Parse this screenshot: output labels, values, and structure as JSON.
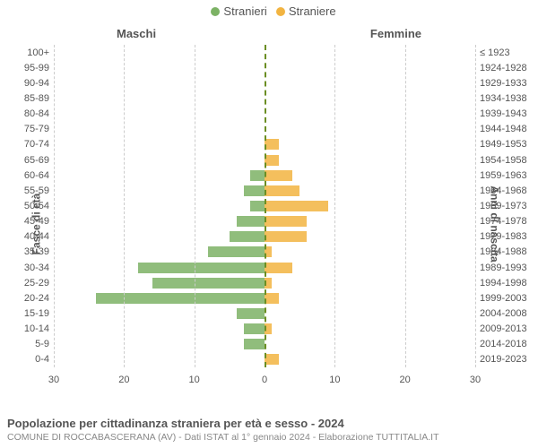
{
  "legend": {
    "items": [
      {
        "label": "Stranieri",
        "color": "#7cb265"
      },
      {
        "label": "Straniere",
        "color": "#f2b441"
      }
    ]
  },
  "column_titles": {
    "left": "Maschi",
    "right": "Femmine"
  },
  "y_axis": {
    "left_label": "Fasce di età",
    "right_label": "Anni di nascita"
  },
  "footer": {
    "title": "Popolazione per cittadinanza straniera per età e sesso - 2024",
    "subtitle": "COMUNE DI ROCCABASCERANA (AV) - Dati ISTAT al 1° gennaio 2024 - Elaborazione TUTTITALIA.IT"
  },
  "chart": {
    "type": "population-pyramid",
    "xmax": 30,
    "xtick_step": 10,
    "background_color": "#ffffff",
    "grid_color": "#cccccc",
    "center_line_color": "#6b8e23",
    "male_color": "#7cb265",
    "female_color": "#f2b441",
    "tick_fontsize": 11,
    "rows": [
      {
        "age": "100+",
        "years": "≤ 1923",
        "m": 0,
        "f": 0
      },
      {
        "age": "95-99",
        "years": "1924-1928",
        "m": 0,
        "f": 0
      },
      {
        "age": "90-94",
        "years": "1929-1933",
        "m": 0,
        "f": 0
      },
      {
        "age": "85-89",
        "years": "1934-1938",
        "m": 0,
        "f": 0
      },
      {
        "age": "80-84",
        "years": "1939-1943",
        "m": 0,
        "f": 0
      },
      {
        "age": "75-79",
        "years": "1944-1948",
        "m": 0,
        "f": 0
      },
      {
        "age": "70-74",
        "years": "1949-1953",
        "m": 0,
        "f": 2
      },
      {
        "age": "65-69",
        "years": "1954-1958",
        "m": 0,
        "f": 2
      },
      {
        "age": "60-64",
        "years": "1959-1963",
        "m": 2,
        "f": 4
      },
      {
        "age": "55-59",
        "years": "1964-1968",
        "m": 3,
        "f": 5
      },
      {
        "age": "50-54",
        "years": "1969-1973",
        "m": 2,
        "f": 9
      },
      {
        "age": "45-49",
        "years": "1974-1978",
        "m": 4,
        "f": 6
      },
      {
        "age": "40-44",
        "years": "1979-1983",
        "m": 5,
        "f": 6
      },
      {
        "age": "35-39",
        "years": "1984-1988",
        "m": 8,
        "f": 1
      },
      {
        "age": "30-34",
        "years": "1989-1993",
        "m": 18,
        "f": 4
      },
      {
        "age": "25-29",
        "years": "1994-1998",
        "m": 16,
        "f": 1
      },
      {
        "age": "20-24",
        "years": "1999-2003",
        "m": 24,
        "f": 2
      },
      {
        "age": "15-19",
        "years": "2004-2008",
        "m": 4,
        "f": 0
      },
      {
        "age": "10-14",
        "years": "2009-2013",
        "m": 3,
        "f": 1
      },
      {
        "age": "5-9",
        "years": "2014-2018",
        "m": 3,
        "f": 0
      },
      {
        "age": "0-4",
        "years": "2019-2023",
        "m": 0,
        "f": 2
      }
    ]
  }
}
